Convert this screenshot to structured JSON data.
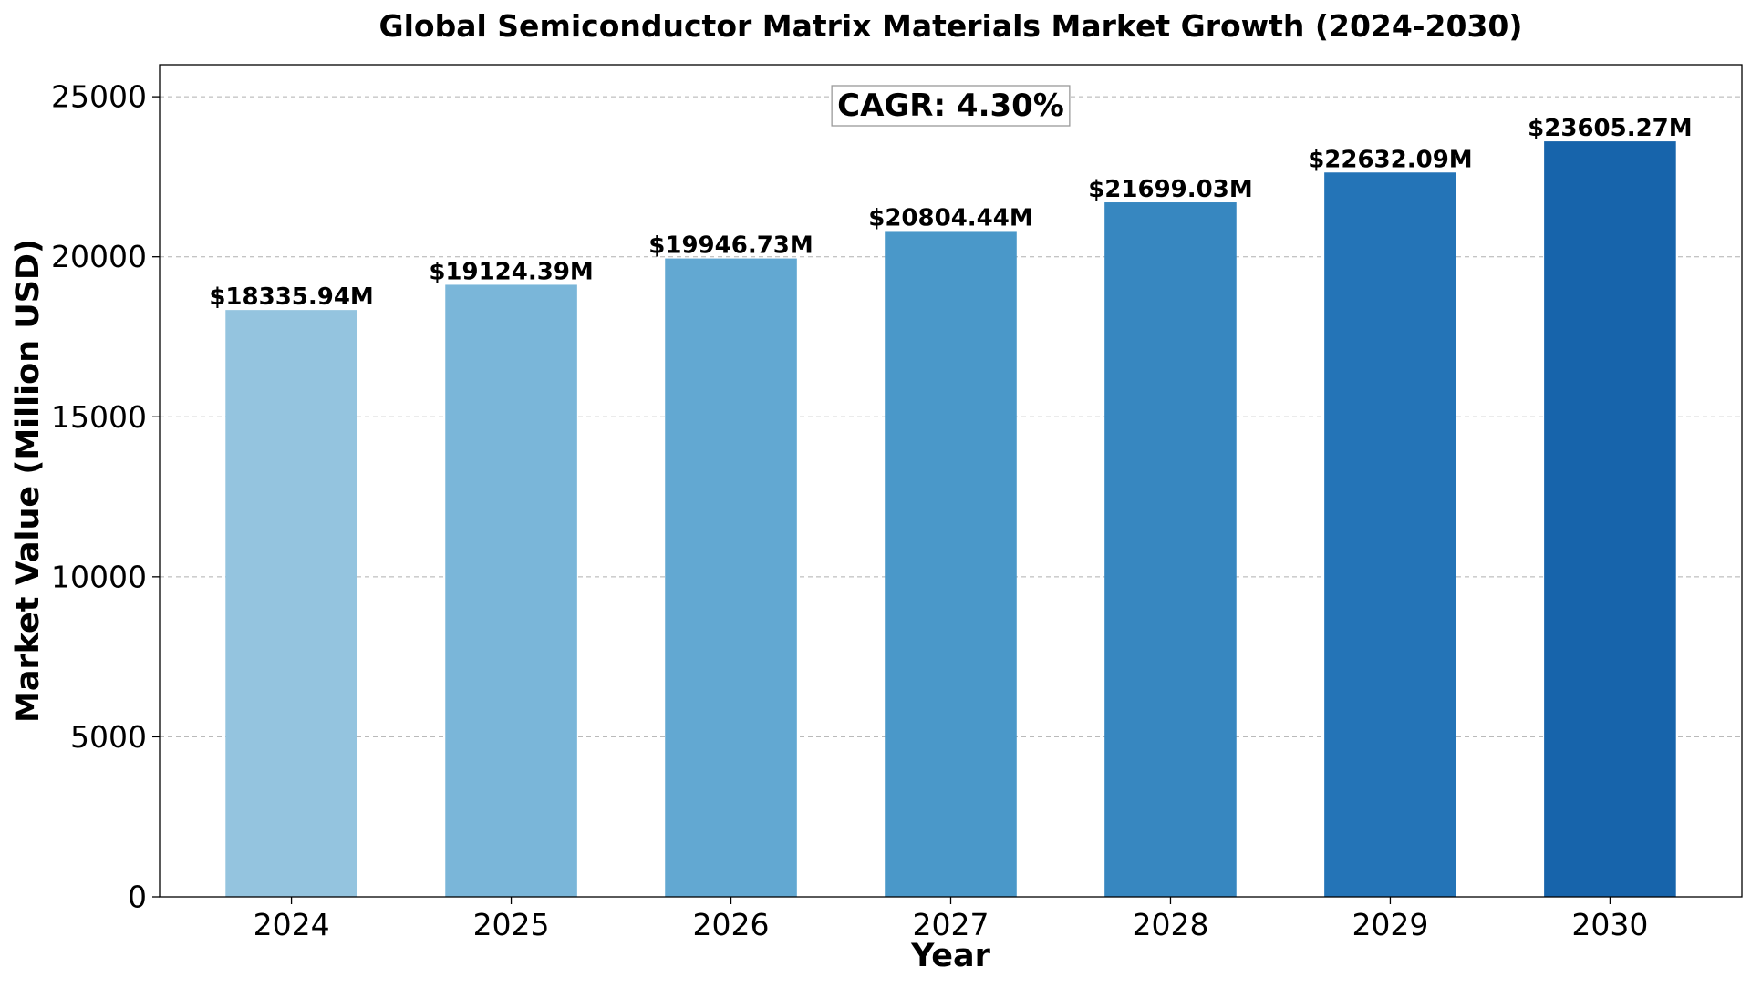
{
  "chart_data": {
    "type": "bar",
    "title": "Global Semiconductor Matrix Materials Market Growth (2024-2030)",
    "xlabel": "Year",
    "ylabel": "Market Value (Million USD)",
    "categories": [
      "2024",
      "2025",
      "2026",
      "2027",
      "2028",
      "2029",
      "2030"
    ],
    "values": [
      18335.94,
      19124.39,
      19946.73,
      20804.44,
      21699.03,
      22632.09,
      23605.27
    ],
    "data_labels": [
      "$18335.94M",
      "$19124.39M",
      "$19946.73M",
      "$20804.44M",
      "$21699.03M",
      "$22632.09M",
      "$23605.27M"
    ],
    "ylim": [
      0,
      26000
    ],
    "yticks": [
      0,
      5000,
      10000,
      15000,
      20000,
      25000
    ],
    "ytick_labels": [
      "0",
      "5000",
      "10000",
      "15000",
      "20000",
      "25000"
    ],
    "grid": "horizontal dashed",
    "annotation": "CAGR: 4.30%",
    "colors": [
      "#94c4df",
      "#7ab6d9",
      "#62a8d2",
      "#4a98c9",
      "#3787c0",
      "#2474b7",
      "#1764ab"
    ]
  }
}
